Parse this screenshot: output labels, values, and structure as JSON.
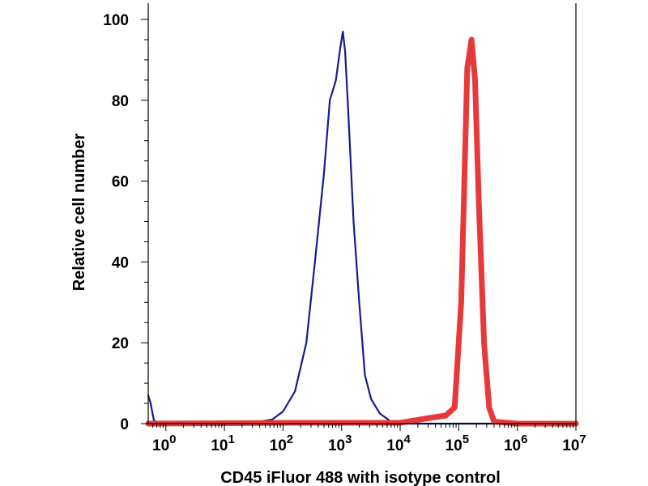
{
  "chart_data": {
    "type": "line",
    "xlabel": "CD45 iFluor 488 with isotype control",
    "ylabel": "Relative cell number",
    "x_scale": "log",
    "xlim": [
      0.5,
      10000000
    ],
    "ylim": [
      0,
      100
    ],
    "grid": false,
    "x_ticks": [
      {
        "base": "10",
        "exp": "0",
        "value": 1
      },
      {
        "base": "10",
        "exp": "1",
        "value": 10
      },
      {
        "base": "10",
        "exp": "2",
        "value": 100
      },
      {
        "base": "10",
        "exp": "3",
        "value": 1000
      },
      {
        "base": "10",
        "exp": "4",
        "value": 10000
      },
      {
        "base": "10",
        "exp": "5",
        "value": 100000
      },
      {
        "base": "10",
        "exp": "6",
        "value": 1000000
      },
      {
        "base": "10",
        "exp": "7",
        "value": 10000000
      }
    ],
    "y_ticks": [
      {
        "label": "0",
        "value": 0
      },
      {
        "label": "20",
        "value": 20
      },
      {
        "label": "40",
        "value": 40
      },
      {
        "label": "60",
        "value": 60
      },
      {
        "label": "80",
        "value": 80
      },
      {
        "label": "100",
        "value": 100
      }
    ],
    "series": [
      {
        "color": "#1a1a8c",
        "points": [
          [
            0.5,
            7
          ],
          [
            0.55,
            5
          ],
          [
            0.62,
            1
          ],
          [
            0.7,
            0
          ],
          [
            1,
            0
          ],
          [
            10,
            0
          ],
          [
            25,
            0.3
          ],
          [
            40,
            0.5
          ],
          [
            65,
            1
          ],
          [
            100,
            3
          ],
          [
            160,
            8
          ],
          [
            250,
            20
          ],
          [
            350,
            40
          ],
          [
            500,
            62
          ],
          [
            630,
            80
          ],
          [
            800,
            85
          ],
          [
            950,
            93
          ],
          [
            1050,
            97
          ],
          [
            1150,
            92
          ],
          [
            1300,
            77
          ],
          [
            1600,
            50
          ],
          [
            2000,
            30
          ],
          [
            2500,
            12
          ],
          [
            3200,
            6
          ],
          [
            4500,
            2.5
          ],
          [
            7000,
            0.5
          ],
          [
            15000,
            0
          ],
          [
            100000,
            0
          ],
          [
            10000000,
            0
          ]
        ]
      },
      {
        "color": "#e8393a",
        "points": [
          [
            0.5,
            0
          ],
          [
            10,
            0.1
          ],
          [
            100,
            0.2
          ],
          [
            1000,
            0.2
          ],
          [
            10000,
            0.2
          ],
          [
            35000,
            1.5
          ],
          [
            60000,
            2
          ],
          [
            85000,
            4
          ],
          [
            110000,
            30
          ],
          [
            140000,
            88
          ],
          [
            165000,
            95
          ],
          [
            190000,
            85
          ],
          [
            220000,
            55
          ],
          [
            270000,
            20
          ],
          [
            330000,
            4
          ],
          [
            400000,
            0.5
          ],
          [
            1000000,
            0
          ],
          [
            10000000,
            0
          ]
        ]
      }
    ]
  }
}
